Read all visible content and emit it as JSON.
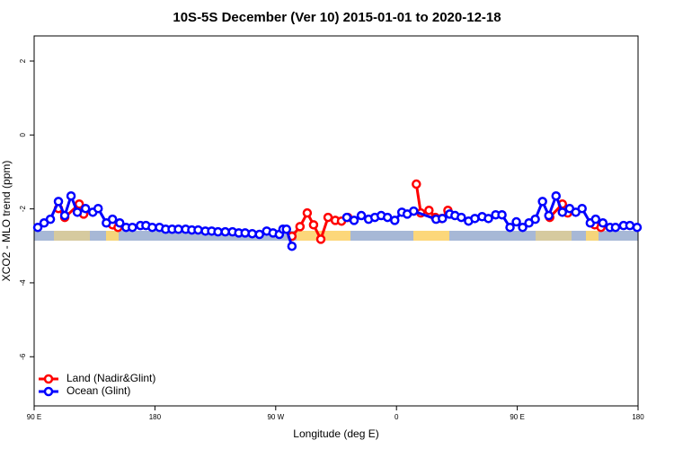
{
  "chart_data": {
    "type": "line",
    "title": "10S-5S December (Ver 10)   2015-01-01 to 2020-12-18",
    "xlabel": "Longitude (deg E)",
    "ylabel": "XCO2 - MLO trend (ppm)",
    "xlim": [
      90,
      540
    ],
    "ylim": [
      -7.33,
      2.68
    ],
    "xticks": [
      {
        "value": 90,
        "label": "90 E"
      },
      {
        "value": 180,
        "label": "180"
      },
      {
        "value": 270,
        "label": "90 W"
      },
      {
        "value": 360,
        "label": "0"
      },
      {
        "value": 450,
        "label": "90 E"
      },
      {
        "value": 540,
        "label": "180"
      }
    ],
    "yticks": [
      2,
      0,
      -2,
      -4,
      -6
    ],
    "legend": "bottom-left",
    "series": [
      {
        "name": "Land (Nadir&Glint)",
        "color": "#ff0000",
        "x": [
          108.1,
          112.8,
          123.6,
          126.9,
          null,
          148.4,
          152.5,
          null,
          282.1,
          288.1,
          293.5,
          298.2,
          303.6,
          309,
          314.4,
          319,
          323.7,
          null,
          374.8,
          378.1,
          384.2,
          388.9,
          393.6,
          398.3,
          null,
          474.2,
          483.6,
          487.6,
          null,
          507.7,
          512.4
        ],
        "values": [
          -1.99,
          -2.23,
          -1.87,
          -2.14,
          null,
          -2.43,
          -2.5,
          null,
          -2.74,
          -2.48,
          -2.11,
          -2.43,
          -2.82,
          -2.23,
          -2.31,
          -2.33,
          -2.23,
          null,
          -1.33,
          -2.11,
          -2.04,
          -2.23,
          -2.26,
          -2.04,
          null,
          -2.23,
          -1.87,
          -2.11,
          null,
          -2.43,
          -2.5
        ]
      },
      {
        "name": "Ocean (Glint)",
        "color": "#0000ff",
        "x": [
          92.7,
          97.4,
          102.1,
          108.1,
          112.8,
          117.5,
          122.2,
          128.3,
          133.7,
          137.7,
          143.8,
          148.4,
          153.8,
          158.5,
          163.2,
          169.2,
          173.3,
          178,
          183.4,
          188,
          192.8,
          197.5,
          202.9,
          207.5,
          212.2,
          217.6,
          222.3,
          227,
          232.4,
          237.8,
          242.5,
          247.2,
          252.5,
          257.9,
          263.3,
          268,
          272.7,
          275.4,
          278,
          282.1,
          null,
          323,
          328.4,
          333.8,
          339.2,
          343.9,
          348.6,
          353.3,
          358.7,
          364,
          368,
          372.8,
          389.5,
          394.2,
          399.6,
          403.6,
          408.3,
          413.7,
          418.4,
          423.8,
          428.5,
          433.9,
          438.6,
          444.6,
          449.3,
          454,
          458.7,
          463.4,
          468.8,
          473.5,
          478.9,
          483.6,
          489,
          493.6,
          498.3,
          504.4,
          508.4,
          513.8,
          519.1,
          523.2,
          529.2,
          533.9,
          539.3
        ],
        "values": [
          -2.5,
          -2.38,
          -2.28,
          -1.8,
          -2.18,
          -1.65,
          -2.09,
          -1.99,
          -2.09,
          -1.99,
          -2.38,
          -2.28,
          -2.38,
          -2.5,
          -2.5,
          -2.45,
          -2.45,
          -2.5,
          -2.5,
          -2.55,
          -2.55,
          -2.55,
          -2.55,
          -2.57,
          -2.57,
          -2.6,
          -2.6,
          -2.62,
          -2.62,
          -2.62,
          -2.65,
          -2.65,
          -2.67,
          -2.69,
          -2.6,
          -2.65,
          -2.69,
          -2.55,
          -2.55,
          -3.01,
          null,
          -2.23,
          -2.31,
          -2.18,
          -2.28,
          -2.23,
          -2.18,
          -2.23,
          -2.31,
          -2.09,
          -2.14,
          -2.06,
          -2.28,
          -2.26,
          -2.14,
          -2.18,
          -2.23,
          -2.33,
          -2.26,
          -2.21,
          -2.26,
          -2.16,
          -2.16,
          -2.5,
          -2.35,
          -2.5,
          -2.38,
          -2.28,
          -1.8,
          -2.18,
          -1.65,
          -2.09,
          -1.99,
          -2.09,
          -1.99,
          -2.38,
          -2.28,
          -2.38,
          -2.5,
          -2.5,
          -2.45,
          -2.45,
          -2.5
        ]
      }
    ]
  }
}
